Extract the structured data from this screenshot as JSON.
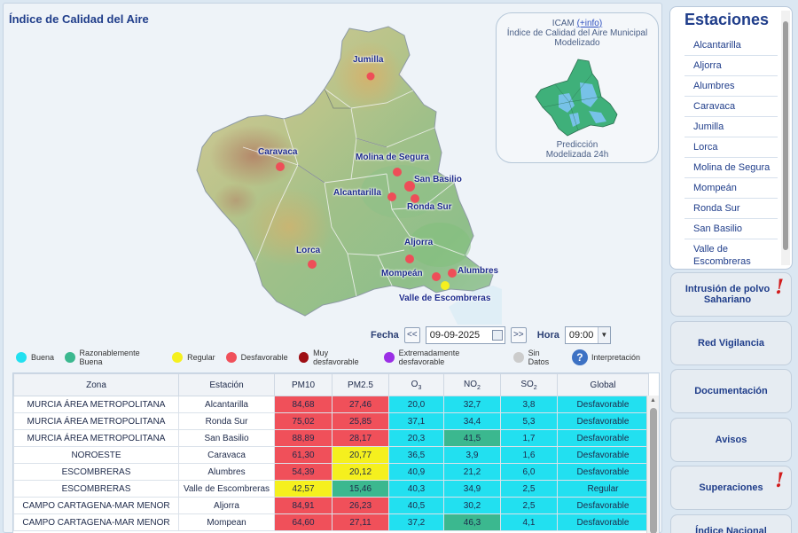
{
  "main": {
    "title": "Índice de Calidad del Aire"
  },
  "map": {
    "cities": [
      "Jumilla",
      "Caravaca",
      "Molina de Segura",
      "San Basilio",
      "Alcantarilla",
      "Ronda Sur",
      "Aljorra",
      "Lorca",
      "Alumbres",
      "Mompeán",
      "Valle de Escombreras"
    ]
  },
  "icam": {
    "title": "ICAM",
    "info_link": "(+info)",
    "subtitle1": "Índice de Calidad del Aire Municipal",
    "subtitle2": "Modelizado",
    "prediction1": "Predicción",
    "prediction2": "Modelizada 24h"
  },
  "date_controls": {
    "fecha_label": "Fecha",
    "prev": "<<",
    "date_value": "09-09-2025",
    "next": ">>",
    "hora_label": "Hora",
    "hour_value": "09:00"
  },
  "legend": [
    {
      "label": "Buena",
      "color": "#22e0f0"
    },
    {
      "label": "Razonablemente Buena",
      "color": "#3bb88f"
    },
    {
      "label": "Regular",
      "color": "#f5f01e"
    },
    {
      "label": "Desfavorable",
      "color": "#f0505a"
    },
    {
      "label": "Muy desfavorable",
      "color": "#9e0f14"
    },
    {
      "label": "Extremadamente desfavorable",
      "color": "#9b2fe6"
    },
    {
      "label": "Sin Datos",
      "color": "#cccccc"
    }
  ],
  "legend_info": "Interpretación",
  "colors": {
    "buena": "#22e0f0",
    "razonable": "#3bb88f",
    "regular": "#f5f01e",
    "desfavorable": "#f0505a"
  },
  "table": {
    "headers": [
      "Zona",
      "Estación",
      "PM10",
      "PM2.5",
      "O3",
      "NO2",
      "SO2",
      "Global"
    ],
    "rows": [
      {
        "zona": "MURCIA ÁREA METROPOLITANA",
        "estacion": "Alcantarilla",
        "pm10": "84,68",
        "pm25": "27,46",
        "o3": "20,0",
        "no2": "32,7",
        "so2": "3,8",
        "global": "Desfavorable",
        "c": [
          "desfavorable",
          "desfavorable",
          "buena",
          "buena",
          "buena",
          "buena"
        ]
      },
      {
        "zona": "MURCIA ÁREA METROPOLITANA",
        "estacion": "Ronda Sur",
        "pm10": "75,02",
        "pm25": "25,85",
        "o3": "37,1",
        "no2": "34,4",
        "so2": "5,3",
        "global": "Desfavorable",
        "c": [
          "desfavorable",
          "desfavorable",
          "buena",
          "buena",
          "buena",
          "buena"
        ]
      },
      {
        "zona": "MURCIA ÁREA METROPOLITANA",
        "estacion": "San Basilio",
        "pm10": "88,89",
        "pm25": "28,17",
        "o3": "20,3",
        "no2": "41,5",
        "so2": "1,7",
        "global": "Desfavorable",
        "c": [
          "desfavorable",
          "desfavorable",
          "buena",
          "razonable",
          "buena",
          "buena"
        ]
      },
      {
        "zona": "NOROESTE",
        "estacion": "Caravaca",
        "pm10": "61,30",
        "pm25": "20,77",
        "o3": "36,5",
        "no2": "3,9",
        "so2": "1,6",
        "global": "Desfavorable",
        "c": [
          "desfavorable",
          "regular",
          "buena",
          "buena",
          "buena",
          "buena"
        ]
      },
      {
        "zona": "ESCOMBRERAS",
        "estacion": "Alumbres",
        "pm10": "54,39",
        "pm25": "20,12",
        "o3": "40,9",
        "no2": "21,2",
        "so2": "6,0",
        "global": "Desfavorable",
        "c": [
          "desfavorable",
          "regular",
          "buena",
          "buena",
          "buena",
          "buena"
        ]
      },
      {
        "zona": "ESCOMBRERAS",
        "estacion": "Valle de Escombreras",
        "pm10": "42,57",
        "pm25": "15,46",
        "o3": "40,3",
        "no2": "34,9",
        "so2": "2,5",
        "global": "Regular",
        "c": [
          "regular",
          "razonable",
          "buena",
          "buena",
          "buena",
          "buena"
        ]
      },
      {
        "zona": "CAMPO CARTAGENA-MAR MENOR",
        "estacion": "Aljorra",
        "pm10": "84,91",
        "pm25": "26,23",
        "o3": "40,5",
        "no2": "30,2",
        "so2": "2,5",
        "global": "Desfavorable",
        "c": [
          "desfavorable",
          "desfavorable",
          "buena",
          "buena",
          "buena",
          "buena"
        ]
      },
      {
        "zona": "CAMPO CARTAGENA-MAR MENOR",
        "estacion": "Mompean",
        "pm10": "64,60",
        "pm25": "27,11",
        "o3": "37,2",
        "no2": "46,3",
        "so2": "4,1",
        "global": "Desfavorable",
        "c": [
          "desfavorable",
          "desfavorable",
          "buena",
          "razonable",
          "buena",
          "buena"
        ]
      }
    ]
  },
  "estaciones": {
    "title": "Estaciones",
    "items": [
      "Alcantarilla",
      "Aljorra",
      "Alumbres",
      "Caravaca",
      "Jumilla",
      "Lorca",
      "Molina de Segura",
      "Mompeán",
      "Ronda Sur",
      "San Basilio",
      "Valle de Escombreras"
    ]
  },
  "side_buttons": [
    {
      "label": "Intrusión de polvo Sahariano",
      "alert": true
    },
    {
      "label": "Red Vigilancia",
      "alert": false
    },
    {
      "label": "Documentación",
      "alert": false
    },
    {
      "label": "Avisos",
      "alert": false
    },
    {
      "label": "Superaciones",
      "alert": true
    },
    {
      "label": "Índice Nacional",
      "alert": false
    }
  ]
}
